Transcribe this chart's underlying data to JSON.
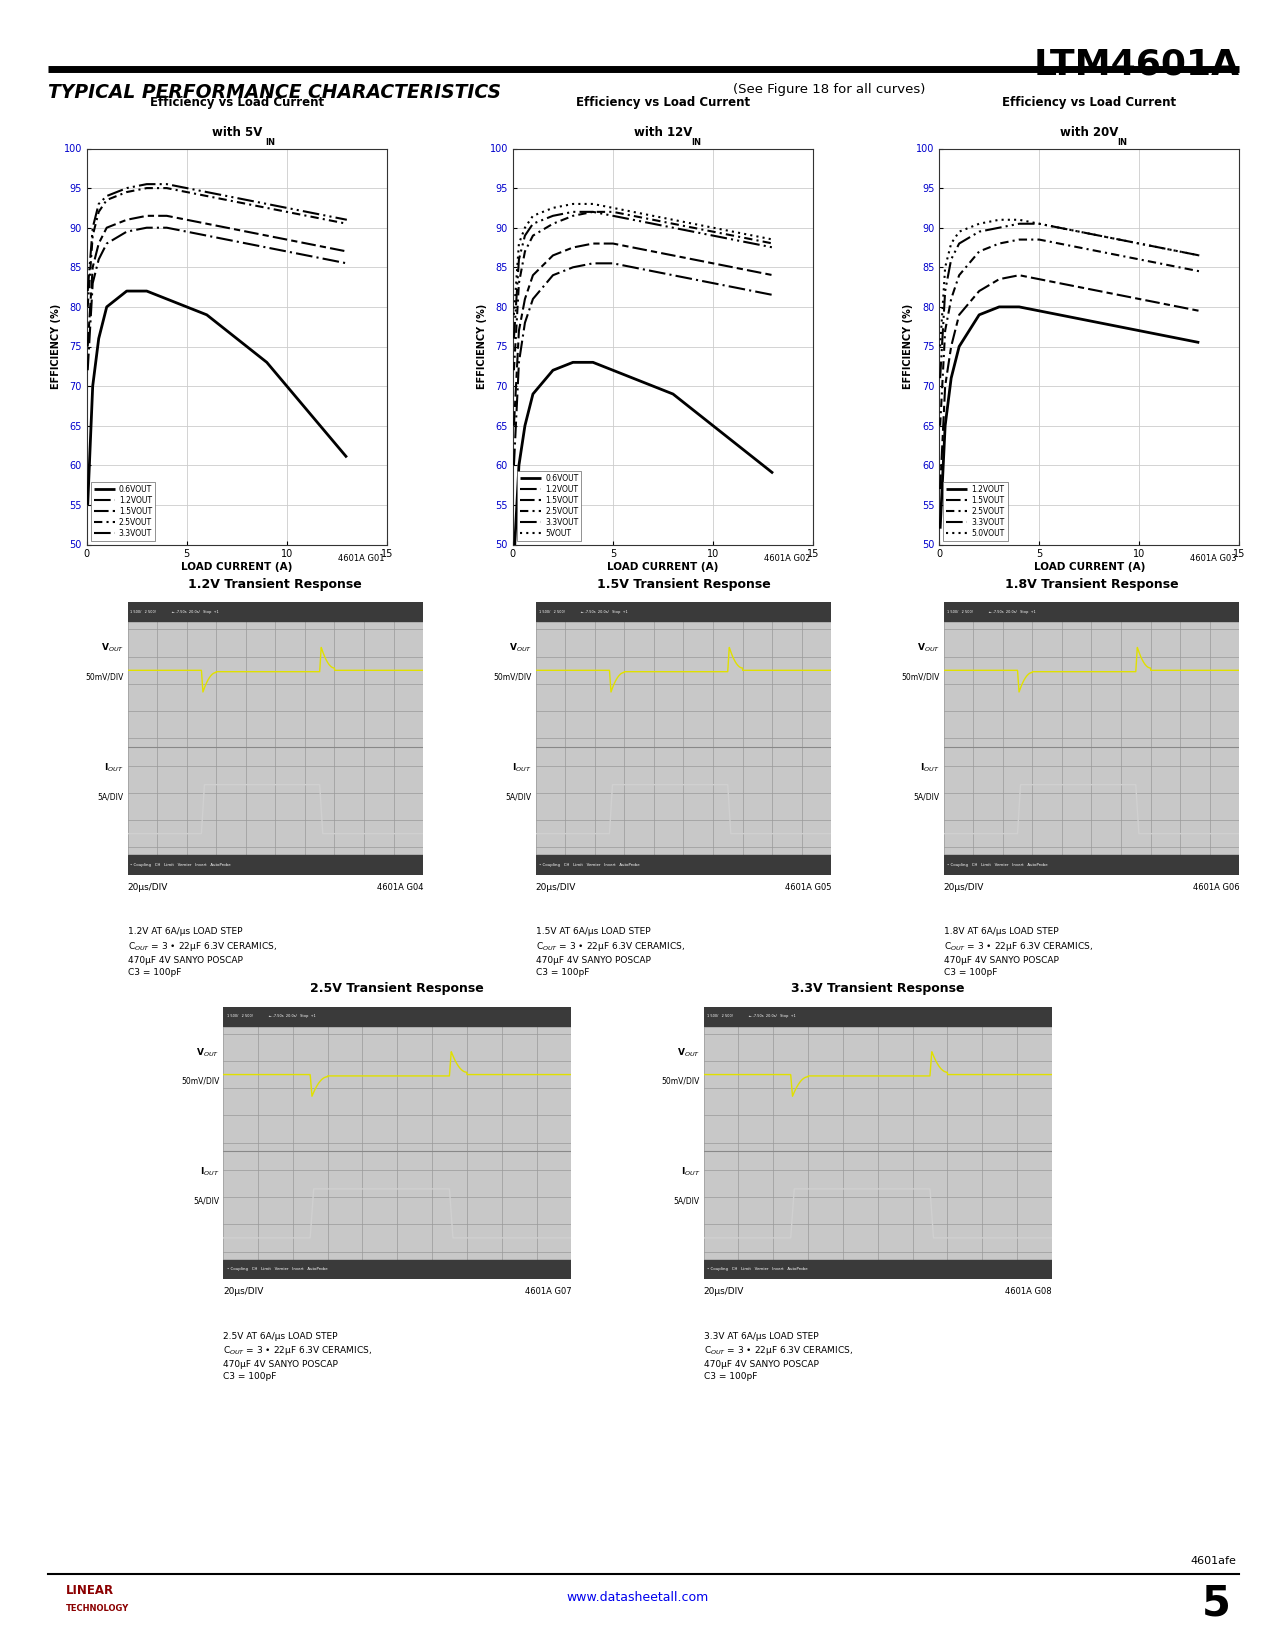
{
  "page_title": "LTM4601A",
  "section_title": "TYPICAL PERFORMANCE CHARACTERISTICS",
  "section_subtitle": "(See Figure 18 for all curves)",
  "background_color": "#ffffff",
  "efficiency_charts": [
    {
      "title_line1": "Efficiency vs Load Current",
      "title_line2": "with 5V",
      "title_sub": "IN",
      "xlabel": "LOAD CURRENT (A)",
      "ylabel": "EFFICIENCY (%)",
      "xmin": 0,
      "xmax": 15,
      "ymin": 50,
      "ymax": 100,
      "xticks": [
        0,
        5,
        10,
        15
      ],
      "yticks": [
        50,
        55,
        60,
        65,
        70,
        75,
        80,
        85,
        90,
        95,
        100
      ],
      "label_id": "4601A G01",
      "curves": [
        {
          "label": "0.6V",
          "label_sub": "OUT",
          "style": "solid_thick",
          "x": [
            0.05,
            0.3,
            0.6,
            1,
            2,
            3,
            4,
            5,
            6,
            7,
            8,
            9,
            10,
            11,
            12,
            13
          ],
          "y": [
            55,
            70,
            76,
            80,
            82,
            82,
            81,
            80,
            79,
            77,
            75,
            73,
            70,
            67,
            64,
            61
          ]
        },
        {
          "label": "1.2V",
          "label_sub": "OUT",
          "style": "dash_dot2",
          "x": [
            0.05,
            0.3,
            0.6,
            1,
            2,
            3,
            4,
            5,
            6,
            7,
            8,
            9,
            10,
            11,
            12,
            13
          ],
          "y": [
            72,
            83,
            86,
            88,
            89.5,
            90,
            90,
            89.5,
            89,
            88.5,
            88,
            87.5,
            87,
            86.5,
            86,
            85.5
          ]
        },
        {
          "label": "1.5V",
          "label_sub": "OUT",
          "style": "dashed2",
          "x": [
            0.05,
            0.3,
            0.6,
            1,
            2,
            3,
            4,
            5,
            6,
            7,
            8,
            9,
            10,
            11,
            12,
            13
          ],
          "y": [
            75,
            85,
            88,
            90,
            91,
            91.5,
            91.5,
            91,
            90.5,
            90,
            89.5,
            89,
            88.5,
            88,
            87.5,
            87
          ]
        },
        {
          "label": "2.5V",
          "label_sub": "OUT",
          "style": "dash_dot",
          "x": [
            0.05,
            0.3,
            0.6,
            1,
            2,
            3,
            4,
            5,
            6,
            7,
            8,
            9,
            10,
            11,
            12,
            13
          ],
          "y": [
            80,
            89,
            92,
            93.5,
            94.5,
            95,
            95,
            94.5,
            94,
            93.5,
            93,
            92.5,
            92,
            91.5,
            91,
            90.5
          ]
        },
        {
          "label": "3.3V",
          "label_sub": "OUT",
          "style": "dash_dot3",
          "x": [
            0.05,
            0.3,
            0.6,
            1,
            2,
            3,
            4,
            5,
            6,
            7,
            8,
            9,
            10,
            11,
            12,
            13
          ],
          "y": [
            82,
            90,
            93,
            94,
            95,
            95.5,
            95.5,
            95,
            94.5,
            94,
            93.5,
            93,
            92.5,
            92,
            91.5,
            91
          ]
        }
      ]
    },
    {
      "title_line1": "Efficiency vs Load Current",
      "title_line2": "with 12V",
      "title_sub": "IN",
      "xlabel": "LOAD CURRENT (A)",
      "ylabel": "EFFICIENCY (%)",
      "xmin": 0,
      "xmax": 15,
      "ymin": 50,
      "ymax": 100,
      "xticks": [
        0,
        5,
        10,
        15
      ],
      "yticks": [
        50,
        55,
        60,
        65,
        70,
        75,
        80,
        85,
        90,
        95,
        100
      ],
      "label_id": "4601A G02",
      "curves": [
        {
          "label": "0.6V",
          "label_sub": "OUT",
          "style": "solid_thick",
          "x": [
            0.05,
            0.3,
            0.6,
            1,
            2,
            3,
            4,
            5,
            6,
            7,
            8,
            9,
            10,
            11,
            12,
            13
          ],
          "y": [
            48,
            60,
            65,
            69,
            72,
            73,
            73,
            72,
            71,
            70,
            69,
            67,
            65,
            63,
            61,
            59
          ]
        },
        {
          "label": "1.2V",
          "label_sub": "OUT",
          "style": "dash_dot2",
          "x": [
            0.05,
            0.3,
            0.6,
            1,
            2,
            3,
            4,
            5,
            6,
            7,
            8,
            9,
            10,
            11,
            12,
            13
          ],
          "y": [
            60,
            73,
            78,
            81,
            84,
            85,
            85.5,
            85.5,
            85,
            84.5,
            84,
            83.5,
            83,
            82.5,
            82,
            81.5
          ]
        },
        {
          "label": "1.5V",
          "label_sub": "OUT",
          "style": "dashed2",
          "x": [
            0.05,
            0.3,
            0.6,
            1,
            2,
            3,
            4,
            5,
            6,
            7,
            8,
            9,
            10,
            11,
            12,
            13
          ],
          "y": [
            65,
            77,
            81,
            84,
            86.5,
            87.5,
            88,
            88,
            87.5,
            87,
            86.5,
            86,
            85.5,
            85,
            84.5,
            84
          ]
        },
        {
          "label": "2.5V",
          "label_sub": "OUT",
          "style": "dash_dot",
          "x": [
            0.05,
            0.3,
            0.6,
            1,
            2,
            3,
            4,
            5,
            6,
            7,
            8,
            9,
            10,
            11,
            12,
            13
          ],
          "y": [
            72,
            83,
            87,
            89,
            90.5,
            91.5,
            92,
            92,
            91.5,
            91,
            90.5,
            90,
            89.5,
            89,
            88.5,
            88
          ]
        },
        {
          "label": "3.3V",
          "label_sub": "OUT",
          "style": "dash_dot3",
          "x": [
            0.05,
            0.3,
            0.6,
            1,
            2,
            3,
            4,
            5,
            6,
            7,
            8,
            9,
            10,
            11,
            12,
            13
          ],
          "y": [
            76,
            86,
            89,
            90.5,
            91.5,
            92,
            92,
            91.5,
            91,
            90.5,
            90,
            89.5,
            89,
            88.5,
            88,
            87.5
          ]
        },
        {
          "label": "5V",
          "label_sub": "OUT",
          "style": "dotted",
          "x": [
            0.05,
            0.3,
            0.6,
            1,
            2,
            3,
            4,
            5,
            6,
            7,
            8,
            9,
            10,
            11,
            12,
            13
          ],
          "y": [
            79,
            88,
            90,
            91.5,
            92.5,
            93,
            93,
            92.5,
            92,
            91.5,
            91,
            90.5,
            90,
            89.5,
            89,
            88.5
          ]
        }
      ]
    },
    {
      "title_line1": "Efficiency vs Load Current",
      "title_line2": "with 20V",
      "title_sub": "IN",
      "xlabel": "LOAD CURRENT (A)",
      "ylabel": "EFFICIENCY (%)",
      "xmin": 0,
      "xmax": 15,
      "ymin": 50,
      "ymax": 100,
      "xticks": [
        0,
        5,
        10,
        15
      ],
      "yticks": [
        50,
        55,
        60,
        65,
        70,
        75,
        80,
        85,
        90,
        95,
        100
      ],
      "label_id": "4601A G03",
      "curves": [
        {
          "label": "1.2V",
          "label_sub": "OUT",
          "style": "solid_thick",
          "x": [
            0.05,
            0.3,
            0.6,
            1,
            2,
            3,
            4,
            5,
            6,
            7,
            8,
            9,
            10,
            11,
            12,
            13
          ],
          "y": [
            52,
            65,
            71,
            75,
            79,
            80,
            80,
            79.5,
            79,
            78.5,
            78,
            77.5,
            77,
            76.5,
            76,
            75.5
          ]
        },
        {
          "label": "1.5V",
          "label_sub": "OUT",
          "style": "dashed2",
          "x": [
            0.05,
            0.3,
            0.6,
            1,
            2,
            3,
            4,
            5,
            6,
            7,
            8,
            9,
            10,
            11,
            12,
            13
          ],
          "y": [
            57,
            70,
            75,
            79,
            82,
            83.5,
            84,
            83.5,
            83,
            82.5,
            82,
            81.5,
            81,
            80.5,
            80,
            79.5
          ]
        },
        {
          "label": "2.5V",
          "label_sub": "OUT",
          "style": "dash_dot",
          "x": [
            0.05,
            0.3,
            0.6,
            1,
            2,
            3,
            4,
            5,
            6,
            7,
            8,
            9,
            10,
            11,
            12,
            13
          ],
          "y": [
            65,
            77,
            81,
            84,
            87,
            88,
            88.5,
            88.5,
            88,
            87.5,
            87,
            86.5,
            86,
            85.5,
            85,
            84.5
          ]
        },
        {
          "label": "3.3V",
          "label_sub": "OUT",
          "style": "dash_dot3",
          "x": [
            0.05,
            0.3,
            0.6,
            1,
            2,
            3,
            4,
            5,
            6,
            7,
            8,
            9,
            10,
            11,
            12,
            13
          ],
          "y": [
            71,
            82,
            86,
            88,
            89.5,
            90,
            90.5,
            90.5,
            90,
            89.5,
            89,
            88.5,
            88,
            87.5,
            87,
            86.5
          ]
        },
        {
          "label": "5.0V",
          "label_sub": "OUT",
          "style": "dotted",
          "x": [
            0.05,
            0.3,
            0.6,
            1,
            2,
            3,
            4,
            5,
            6,
            7,
            8,
            9,
            10,
            11,
            12,
            13
          ],
          "y": [
            75,
            85,
            88,
            89.5,
            90.5,
            91,
            91,
            90.5,
            90,
            89.5,
            89,
            88.5,
            88,
            87.5,
            87,
            86.5
          ]
        }
      ]
    }
  ],
  "transient_row1": [
    {
      "title": "1.2V Transient Response",
      "label_id": "4601A G04",
      "caption_v": "1.2V AT 6A/μs LOAD STEP",
      "caption_c": "C$_{OUT}$ = 3 • 22μF 6.3V CERAMICS,\n470μF 4V SANYO POSCAP\nC3 = 100pF"
    },
    {
      "title": "1.5V Transient Response",
      "label_id": "4601A G05",
      "caption_v": "1.5V AT 6A/μs LOAD STEP",
      "caption_c": "C$_{OUT}$ = 3 • 22μF 6.3V CERAMICS,\n470μF 4V SANYO POSCAP\nC3 = 100pF"
    },
    {
      "title": "1.8V Transient Response",
      "label_id": "4601A G06",
      "caption_v": "1.8V AT 6A/μs LOAD STEP",
      "caption_c": "C$_{OUT}$ = 3 • 22μF 6.3V CERAMICS,\n470μF 4V SANYO POSCAP\nC3 = 100pF"
    }
  ],
  "transient_row2": [
    {
      "title": "2.5V Transient Response",
      "label_id": "4601A G07",
      "caption_v": "2.5V AT 6A/μs LOAD STEP",
      "caption_c": "C$_{OUT}$ = 3 • 22μF 6.3V CERAMICS,\n470μF 4V SANYO POSCAP\nC3 = 100pF"
    },
    {
      "title": "3.3V Transient Response",
      "label_id": "4601A G08",
      "caption_v": "3.3V AT 6A/μs LOAD STEP",
      "caption_c": "C$_{OUT}$ = 3 • 22μF 6.3V CERAMICS,\n470μF 4V SANYO POSCAP\nC3 = 100pF"
    }
  ],
  "footer_url": "www.datasheetall.com",
  "footer_page": "5",
  "footer_note": "4601afe"
}
